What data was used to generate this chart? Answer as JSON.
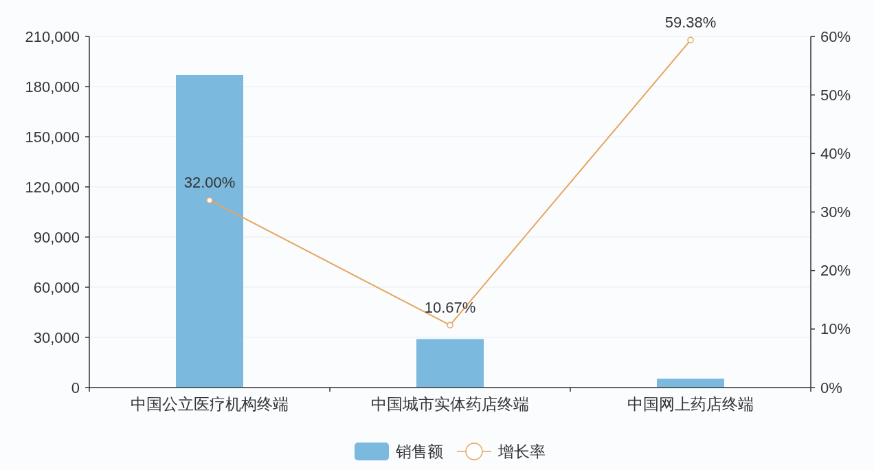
{
  "chart_data": {
    "type": "bar",
    "categories": [
      "中国公立医疗机构终端",
      "中国城市实体药店终端",
      "中国网上药店终端"
    ],
    "series": [
      {
        "name": "销售额",
        "color": "#7cb9df",
        "values": [
          187000,
          29000,
          5300
        ]
      },
      {
        "name": "增长率",
        "type": "line",
        "axis": "y2",
        "color": "#e5a55d",
        "values": [
          32,
          10.67,
          59.38
        ],
        "value_labels": [
          "32.00%",
          "10.67%",
          "59.38%"
        ]
      }
    ],
    "ylim": [
      0,
      210000
    ],
    "yticks": [
      0,
      {
        "value": 30000,
        "label": "30,000"
      },
      {
        "value": 60000,
        "label": "60,000"
      },
      {
        "value": 90000,
        "label": "90,000"
      },
      {
        "value": 120000,
        "label": "120,000"
      },
      {
        "value": 150000,
        "label": "150,000"
      },
      {
        "value": 180000,
        "label": "180,000"
      },
      {
        "value": 210000,
        "label": "210,000"
      }
    ],
    "y2lim": [
      0,
      60
    ],
    "y2ticks": [
      {
        "value": 0,
        "label": "0%"
      },
      {
        "value": 10,
        "label": "10%"
      },
      {
        "value": 20,
        "label": "20%"
      },
      {
        "value": 30,
        "label": "30%"
      },
      {
        "value": 40,
        "label": "40%"
      },
      {
        "value": 50,
        "label": "50%"
      },
      {
        "value": 60,
        "label": "60%"
      }
    ],
    "grid": "y",
    "legend": "bottom",
    "marker": "circle"
  }
}
